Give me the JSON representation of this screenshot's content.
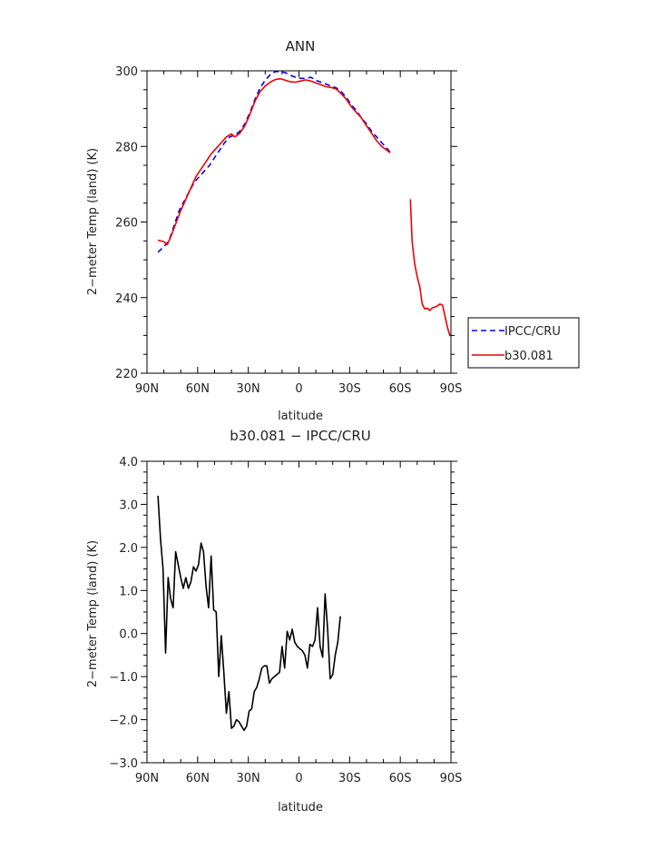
{
  "chart_data": [
    {
      "type": "line",
      "title": "ANN",
      "xlabel": "latitude",
      "ylabel": "2−meter Temp (land) (K)",
      "xlim": [
        90,
        -90
      ],
      "ylim": [
        220,
        300
      ],
      "x_ticks": [
        {
          "v": 90,
          "label": "90N"
        },
        {
          "v": 60,
          "label": "60N"
        },
        {
          "v": 30,
          "label": "30N"
        },
        {
          "v": 0,
          "label": "0"
        },
        {
          "v": -30,
          "label": "30S"
        },
        {
          "v": -60,
          "label": "60S"
        },
        {
          "v": -90,
          "label": "90S"
        }
      ],
      "y_ticks": [
        {
          "v": 220,
          "label": "220"
        },
        {
          "v": 240,
          "label": "240"
        },
        {
          "v": 260,
          "label": "260"
        },
        {
          "v": 280,
          "label": "280"
        },
        {
          "v": 300,
          "label": "300"
        }
      ],
      "legend_position": "right",
      "series": [
        {
          "name": "IPCC/CRU",
          "color": "#0000ff",
          "dash": true,
          "segments": [
            [
              [
                83.5,
                252
              ],
              [
                80,
                253.5
              ],
              [
                77,
                255
              ],
              [
                74,
                259
              ],
              [
                71,
                263
              ],
              [
                68,
                265.5
              ],
              [
                65,
                268
              ],
              [
                62,
                270.5
              ],
              [
                59,
                272
              ],
              [
                56,
                273.5
              ],
              [
                53,
                275
              ],
              [
                50,
                277
              ],
              [
                47,
                279
              ],
              [
                44,
                281
              ],
              [
                41,
                282.5
              ],
              [
                38,
                283
              ],
              [
                35,
                284
              ],
              [
                32,
                286
              ],
              [
                29,
                289
              ],
              [
                26,
                292.5
              ],
              [
                23,
                295.5
              ],
              [
                20,
                297.5
              ],
              [
                17,
                299
              ],
              [
                14,
                299.8
              ],
              [
                11,
                299.8
              ],
              [
                8,
                299.5
              ],
              [
                5,
                298.8
              ],
              [
                2,
                298.3
              ],
              [
                -1,
                298
              ],
              [
                -4,
                298
              ],
              [
                -7,
                298.3
              ],
              [
                -10,
                297.5
              ],
              [
                -13,
                297
              ],
              [
                -16,
                296.5
              ],
              [
                -19,
                296
              ],
              [
                -22,
                295.5
              ],
              [
                -25,
                294.5
              ],
              [
                -28,
                293
              ],
              [
                -31,
                291
              ],
              [
                -34,
                289.5
              ],
              [
                -37,
                287.5
              ],
              [
                -40,
                286
              ],
              [
                -43,
                284
              ],
              [
                -46,
                282.5
              ],
              [
                -49,
                281
              ],
              [
                -52,
                279.5
              ],
              [
                -54,
                278.5
              ]
            ]
          ]
        },
        {
          "name": "b30.081",
          "color": "#ee0000",
          "dash": false,
          "segments": [
            [
              [
                83.5,
                255.2
              ],
              [
                80,
                254.8
              ],
              [
                78,
                254
              ],
              [
                76,
                256
              ],
              [
                73,
                259.5
              ],
              [
                70,
                263
              ],
              [
                67,
                266
              ],
              [
                64,
                269
              ],
              [
                61,
                272
              ],
              [
                58,
                274
              ],
              [
                55,
                276
              ],
              [
                52,
                278
              ],
              [
                49,
                279.5
              ],
              [
                46,
                281
              ],
              [
                43,
                282.5
              ],
              [
                40,
                283.3
              ],
              [
                38,
                282.5
              ],
              [
                35,
                283.5
              ],
              [
                32,
                285.5
              ],
              [
                29,
                288.5
              ],
              [
                26,
                292
              ],
              [
                23,
                294.5
              ],
              [
                20,
                296
              ],
              [
                17,
                297
              ],
              [
                14,
                297.7
              ],
              [
                11,
                297.9
              ],
              [
                8,
                297.5
              ],
              [
                5,
                297.1
              ],
              [
                2,
                297
              ],
              [
                -1,
                297.3
              ],
              [
                -4,
                297.6
              ],
              [
                -7,
                297.3
              ],
              [
                -10,
                296.8
              ],
              [
                -13,
                296.3
              ],
              [
                -16,
                295.8
              ],
              [
                -19,
                295.6
              ],
              [
                -22,
                295.2
              ],
              [
                -25,
                294
              ],
              [
                -28,
                292.5
              ],
              [
                -31,
                290.5
              ],
              [
                -34,
                289
              ],
              [
                -37,
                287.5
              ],
              [
                -40,
                285.5
              ],
              [
                -43,
                283.5
              ],
              [
                -46,
                281.5
              ],
              [
                -49,
                280
              ],
              [
                -52,
                279
              ],
              [
                -54,
                278.3
              ]
            ],
            [
              [
                -66,
                266
              ],
              [
                -67,
                255
              ],
              [
                -68.5,
                249
              ],
              [
                -70,
                245.5
              ],
              [
                -71.5,
                243
              ],
              [
                -73,
                238.2
              ],
              [
                -74.5,
                237
              ],
              [
                -76,
                237.2
              ],
              [
                -77.5,
                236.6
              ],
              [
                -79,
                237.3
              ],
              [
                -80.5,
                237.5
              ],
              [
                -82,
                237.8
              ],
              [
                -83.5,
                238.3
              ],
              [
                -85,
                238
              ],
              [
                -86.5,
                235
              ],
              [
                -88,
                232
              ],
              [
                -89.5,
                229.8
              ]
            ]
          ]
        }
      ]
    },
    {
      "type": "line",
      "title": "b30.081 − IPCC/CRU",
      "xlabel": "latitude",
      "ylabel": "2−meter Temp (land) (K)",
      "xlim": [
        90,
        -90
      ],
      "ylim": [
        -3,
        4
      ],
      "x_ticks": [
        {
          "v": 90,
          "label": "90N"
        },
        {
          "v": 60,
          "label": "60N"
        },
        {
          "v": 30,
          "label": "30N"
        },
        {
          "v": 0,
          "label": "0"
        },
        {
          "v": -30,
          "label": "30S"
        },
        {
          "v": -60,
          "label": "60S"
        },
        {
          "v": -90,
          "label": "90S"
        }
      ],
      "y_ticks": [
        {
          "v": -3,
          "label": "−3.0"
        },
        {
          "v": -2,
          "label": "−2.0"
        },
        {
          "v": -1,
          "label": "−1.0"
        },
        {
          "v": 0,
          "label": "0.0"
        },
        {
          "v": 1,
          "label": "1.0"
        },
        {
          "v": 2,
          "label": "2.0"
        },
        {
          "v": 3,
          "label": "3.0"
        },
        {
          "v": 4,
          "label": "4.0"
        }
      ],
      "series": [
        {
          "color": "#000000",
          "dash": false,
          "segments": [
            [
              [
                83.5,
                3.2
              ],
              [
                82,
                2.2
              ],
              [
                80.5,
                1.5
              ],
              [
                79,
                -0.45
              ],
              [
                77.5,
                1.3
              ],
              [
                76,
                0.8
              ],
              [
                74.5,
                0.6
              ],
              [
                73,
                1.9
              ],
              [
                71.5,
                1.6
              ],
              [
                70,
                1.3
              ],
              [
                68.5,
                1.05
              ],
              [
                67,
                1.3
              ],
              [
                65.5,
                1.05
              ],
              [
                64,
                1.2
              ],
              [
                62.5,
                1.55
              ],
              [
                61,
                1.45
              ],
              [
                59.5,
                1.6
              ],
              [
                58,
                2.1
              ],
              [
                56.5,
                1.9
              ],
              [
                55,
                1.1
              ],
              [
                53.5,
                0.6
              ],
              [
                52,
                1.8
              ],
              [
                50.5,
                0.55
              ],
              [
                49,
                0.5
              ],
              [
                47.5,
                -1.0
              ],
              [
                46,
                -0.05
              ],
              [
                44.5,
                -0.9
              ],
              [
                43,
                -1.85
              ],
              [
                41.5,
                -1.35
              ],
              [
                40,
                -2.2
              ],
              [
                38.5,
                -2.15
              ],
              [
                37,
                -2.0
              ],
              [
                35.5,
                -2.05
              ],
              [
                34,
                -2.15
              ],
              [
                32.5,
                -2.25
              ],
              [
                31,
                -2.15
              ],
              [
                29.5,
                -1.8
              ],
              [
                28,
                -1.75
              ],
              [
                26.5,
                -1.35
              ],
              [
                25,
                -1.25
              ],
              [
                23.5,
                -1.05
              ],
              [
                22,
                -0.8
              ],
              [
                20.5,
                -0.75
              ],
              [
                19,
                -0.75
              ],
              [
                17.5,
                -1.15
              ],
              [
                16,
                -1.05
              ],
              [
                14.5,
                -1.0
              ],
              [
                13,
                -0.95
              ],
              [
                11.5,
                -0.9
              ],
              [
                10,
                -0.3
              ],
              [
                8.5,
                -0.8
              ],
              [
                7,
                0.05
              ],
              [
                5.5,
                -0.15
              ],
              [
                4,
                0.1
              ],
              [
                2.5,
                -0.2
              ],
              [
                1,
                -0.3
              ],
              [
                -0.5,
                -0.35
              ],
              [
                -2,
                -0.4
              ],
              [
                -3.5,
                -0.5
              ],
              [
                -5,
                -0.8
              ],
              [
                -6.5,
                -0.25
              ],
              [
                -8,
                -0.3
              ],
              [
                -9.5,
                -0.15
              ],
              [
                -11,
                0.6
              ],
              [
                -12.5,
                -0.3
              ],
              [
                -14,
                -0.55
              ],
              [
                -15.5,
                0.92
              ],
              [
                -17,
                0.1
              ],
              [
                -18.5,
                -1.05
              ],
              [
                -20,
                -0.95
              ],
              [
                -21.5,
                -0.5
              ],
              [
                -23,
                -0.2
              ],
              [
                -24.5,
                0.4
              ]
            ]
          ]
        }
      ]
    }
  ]
}
